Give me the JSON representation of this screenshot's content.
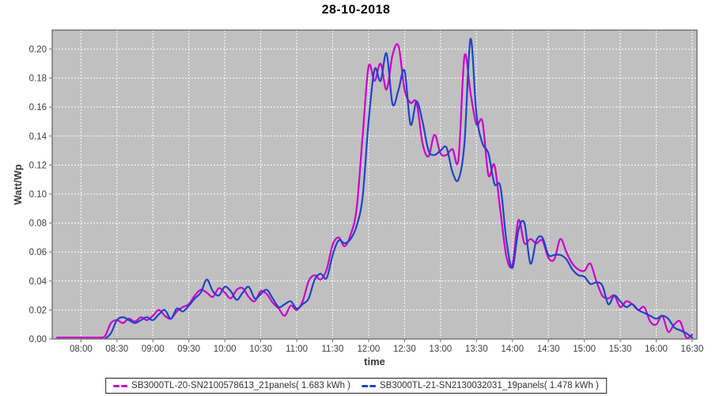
{
  "title": "28-10-2018",
  "colors": {
    "plot_bg": "#c0c0c0",
    "grid": "#ffffff",
    "axis": "#6f6f6f",
    "tick_label": "#3d3d3d",
    "series1": "#cb00cb",
    "series2": "#2143c8"
  },
  "chart_data": {
    "type": "line",
    "title": "28-10-2018",
    "xlabel": "time",
    "ylabel": "Watt/Wp",
    "legend_position": "bottom-center",
    "grid": "white dashed on gray plot background",
    "ylim": [
      0,
      0.2131
    ],
    "x_window": [
      "07:36",
      "16:34"
    ],
    "y_ticks": [
      "0.00",
      "0.02",
      "0.04",
      "0.06",
      "0.08",
      "0.10",
      "0.12",
      "0.14",
      "0.16",
      "0.18",
      "0.20"
    ],
    "x_ticks": [
      "08:00",
      "08:30",
      "09:00",
      "09:30",
      "10:00",
      "10:30",
      "11:00",
      "11:30",
      "12:00",
      "12:30",
      "13:00",
      "13:30",
      "14:00",
      "14:30",
      "15:00",
      "15:30",
      "16:00",
      "16:30"
    ],
    "x": [
      "07:40",
      "07:45",
      "07:50",
      "07:55",
      "08:00",
      "08:05",
      "08:10",
      "08:15",
      "08:20",
      "08:25",
      "08:30",
      "08:35",
      "08:40",
      "08:45",
      "08:50",
      "08:55",
      "09:00",
      "09:05",
      "09:10",
      "09:15",
      "09:20",
      "09:25",
      "09:30",
      "09:35",
      "09:40",
      "09:45",
      "09:50",
      "09:55",
      "10:00",
      "10:05",
      "10:10",
      "10:15",
      "10:20",
      "10:25",
      "10:30",
      "10:35",
      "10:40",
      "10:45",
      "10:50",
      "10:55",
      "11:00",
      "11:05",
      "11:10",
      "11:15",
      "11:20",
      "11:25",
      "11:30",
      "11:35",
      "11:40",
      "11:45",
      "11:50",
      "11:55",
      "12:00",
      "12:05",
      "12:10",
      "12:15",
      "12:20",
      "12:25",
      "12:30",
      "12:35",
      "12:40",
      "12:45",
      "12:50",
      "12:55",
      "13:00",
      "13:05",
      "13:10",
      "13:15",
      "13:20",
      "13:25",
      "13:30",
      "13:35",
      "13:40",
      "13:45",
      "13:50",
      "13:55",
      "14:00",
      "14:05",
      "14:10",
      "14:15",
      "14:20",
      "14:25",
      "14:30",
      "14:35",
      "14:40",
      "14:45",
      "14:50",
      "14:55",
      "15:00",
      "15:05",
      "15:10",
      "15:15",
      "15:20",
      "15:25",
      "15:30",
      "15:35",
      "15:40",
      "15:45",
      "15:50",
      "15:55",
      "16:00",
      "16:05",
      "16:10",
      "16:15",
      "16:20",
      "16:25",
      "16:30"
    ],
    "series": [
      {
        "name": "SB3000TL-20-SN2100578613_21panels( 1.683 kWh )",
        "energy_kwh": 1.683,
        "color": "#cb00cb",
        "values": [
          0.001,
          0.001,
          0.001,
          0.001,
          0.001,
          0.001,
          0.001,
          0.001,
          0.002,
          0.011,
          0.013,
          0.011,
          0.014,
          0.012,
          0.015,
          0.013,
          0.016,
          0.02,
          0.016,
          0.014,
          0.019,
          0.022,
          0.024,
          0.03,
          0.034,
          0.032,
          0.029,
          0.035,
          0.032,
          0.028,
          0.034,
          0.035,
          0.029,
          0.026,
          0.033,
          0.031,
          0.025,
          0.021,
          0.016,
          0.023,
          0.02,
          0.026,
          0.04,
          0.044,
          0.041,
          0.048,
          0.065,
          0.07,
          0.064,
          0.072,
          0.09,
          0.14,
          0.188,
          0.178,
          0.19,
          0.172,
          0.196,
          0.202,
          0.172,
          0.163,
          0.163,
          0.135,
          0.126,
          0.141,
          0.128,
          0.127,
          0.131,
          0.124,
          0.195,
          0.17,
          0.148,
          0.15,
          0.113,
          0.12,
          0.088,
          0.057,
          0.051,
          0.082,
          0.066,
          0.069,
          0.066,
          0.068,
          0.056,
          0.055,
          0.069,
          0.06,
          0.052,
          0.048,
          0.047,
          0.052,
          0.04,
          0.03,
          0.028,
          0.03,
          0.022,
          0.026,
          0.024,
          0.02,
          0.022,
          0.012,
          0.01,
          0.016,
          0.005,
          0.01,
          0.012,
          0.001,
          0.003
        ]
      },
      {
        "name": "SB3000TL-21-SN2130032031_19panels( 1.478 kWh )",
        "energy_kwh": 1.478,
        "color": "#2143c8",
        "values": [
          null,
          null,
          null,
          null,
          null,
          null,
          null,
          null,
          0.0,
          0.004,
          0.013,
          0.015,
          0.013,
          0.011,
          0.013,
          0.015,
          0.013,
          0.017,
          0.02,
          0.014,
          0.021,
          0.019,
          0.023,
          0.028,
          0.032,
          0.041,
          0.033,
          0.03,
          0.036,
          0.033,
          0.027,
          0.032,
          0.036,
          0.028,
          0.031,
          0.034,
          0.028,
          0.022,
          0.024,
          0.026,
          0.021,
          0.024,
          0.028,
          0.041,
          0.045,
          0.042,
          0.058,
          0.068,
          0.066,
          0.069,
          0.078,
          0.098,
          0.15,
          0.186,
          0.178,
          0.197,
          0.162,
          0.172,
          0.185,
          0.148,
          0.164,
          0.15,
          0.13,
          0.127,
          0.13,
          0.132,
          0.115,
          0.11,
          0.135,
          0.207,
          0.155,
          0.135,
          0.128,
          0.107,
          0.105,
          0.068,
          0.049,
          0.075,
          0.08,
          0.052,
          0.068,
          0.07,
          0.058,
          0.058,
          0.058,
          0.055,
          0.048,
          0.044,
          0.043,
          0.038,
          0.039,
          0.037,
          0.024,
          0.03,
          0.026,
          0.022,
          0.024,
          0.02,
          0.018,
          0.016,
          0.014,
          0.016,
          0.014,
          0.008,
          0.006,
          0.004,
          0.001
        ]
      }
    ]
  }
}
